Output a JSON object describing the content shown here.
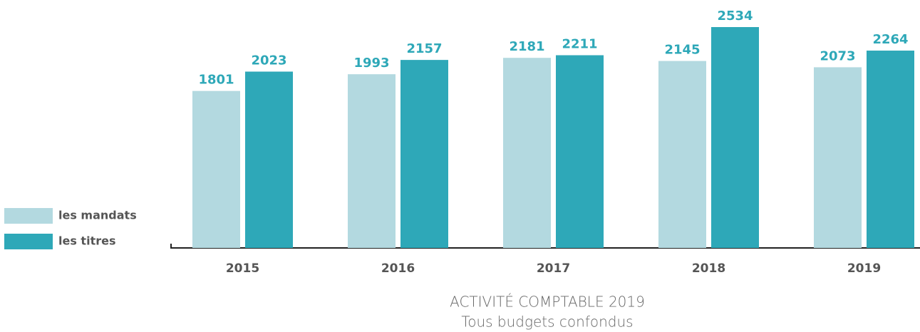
{
  "chart_data": {
    "type": "bar",
    "title": "ACTIVITÉ COMPTABLE 2019",
    "subtitle": "Tous budgets confondus",
    "categories": [
      "2015",
      "2016",
      "2017",
      "2018",
      "2019"
    ],
    "series": [
      {
        "name": "les mandats",
        "color": "#b3d9e0",
        "values": [
          1801,
          1993,
          2181,
          2145,
          2073
        ]
      },
      {
        "name": "les titres",
        "color": "#2ea8b8",
        "values": [
          2023,
          2157,
          2211,
          2534,
          2264
        ]
      }
    ],
    "value_label_color": "#2ea8b8"
  }
}
